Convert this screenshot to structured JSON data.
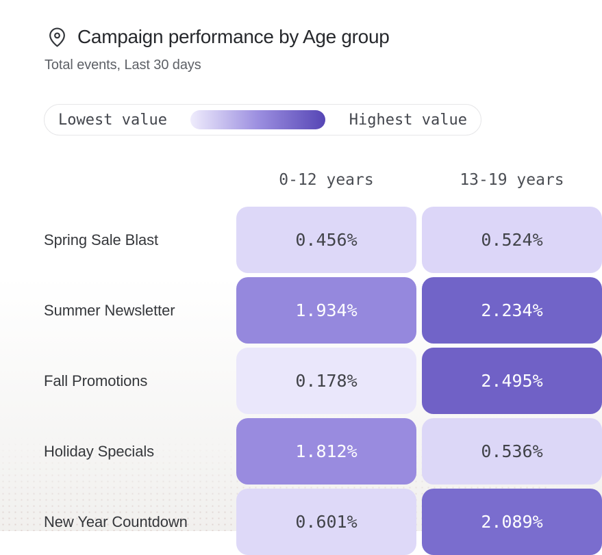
{
  "header": {
    "title": "Campaign performance by Age group",
    "subtitle": "Total events, Last 30 days",
    "icon": "map-pin-icon"
  },
  "legend": {
    "low_label": "Lowest value",
    "high_label": "Highest value",
    "gradient_stops": [
      "#EFECFC",
      "#9C8FE0",
      "#5646B5"
    ]
  },
  "chart_data": {
    "type": "heatmap",
    "title": "Campaign performance by Age group",
    "subtitle": "Total events, Last 30 days",
    "columns": [
      "0-12 years",
      "13-19 years"
    ],
    "rows": [
      "Spring Sale Blast",
      "Summer Newsletter",
      "Fall Promotions",
      "Holiday Specials",
      "New Year Countdown"
    ],
    "values": [
      [
        0.456,
        0.524
      ],
      [
        1.934,
        2.234
      ],
      [
        0.178,
        2.495
      ],
      [
        1.812,
        0.536
      ],
      [
        0.601,
        2.089
      ]
    ],
    "cell_labels": [
      [
        "0.456%",
        "0.524%"
      ],
      [
        "1.934%",
        "2.234%"
      ],
      [
        "0.178%",
        "2.495%"
      ],
      [
        "1.812%",
        "0.536%"
      ],
      [
        "0.601%",
        "2.089%"
      ]
    ],
    "cell_colors": [
      [
        "#DDD8F8",
        "#DCD6F8"
      ],
      [
        "#9588DD",
        "#7164C8"
      ],
      [
        "#EAE7FB",
        "#7061C6"
      ],
      [
        "#998BDF",
        "#DCD7F7"
      ],
      [
        "#DED9F8",
        "#7A6DCE"
      ]
    ],
    "text_colors": [
      [
        "dark",
        "dark"
      ],
      [
        "light",
        "light"
      ],
      [
        "dark",
        "light"
      ],
      [
        "light",
        "dark"
      ],
      [
        "dark",
        "light"
      ]
    ],
    "colorscale": {
      "min_color": "#EFECFC",
      "max_color": "#5646B5",
      "min_value": 0.178,
      "max_value": 2.495
    },
    "legend_position": "top",
    "grid": false
  }
}
